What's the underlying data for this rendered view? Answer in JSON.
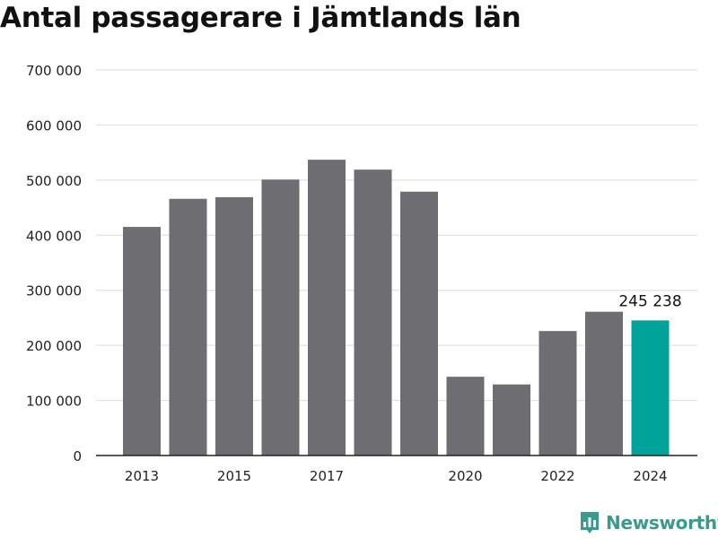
{
  "title": "Antal passagerare i Jämtlands län",
  "chart_data": {
    "type": "bar",
    "title": "Antal passagerare i Jämtlands län",
    "xlabel": "",
    "ylabel": "",
    "ylim": [
      0,
      700000
    ],
    "yticks": [
      0,
      100000,
      200000,
      300000,
      400000,
      500000,
      600000,
      700000
    ],
    "ytick_labels": [
      "0",
      "100 000",
      "200 000",
      "300 000",
      "400 000",
      "500 000",
      "600 000",
      "700 000"
    ],
    "categories": [
      "2013",
      "2014",
      "2015",
      "2016",
      "2017",
      "2018",
      "2019",
      "2020",
      "2021",
      "2022",
      "2023",
      "2024"
    ],
    "xtick_labels": [
      "2013",
      "",
      "2015",
      "",
      "2017",
      "",
      "",
      "2020",
      "",
      "2022",
      "",
      "2024"
    ],
    "values": [
      415000,
      466000,
      469000,
      501000,
      537000,
      519000,
      479000,
      143000,
      129000,
      226000,
      261000,
      245238
    ],
    "highlight_index": 11,
    "highlight_label": "245 238",
    "grid": true,
    "legend": "none"
  },
  "colors": {
    "bar": "#6e6d72",
    "highlight": "#00a39a",
    "grid": "#dcdcdc",
    "axis": "#222222",
    "text": "#222222"
  },
  "logo": {
    "text": "Newsworthy",
    "icon": "newsworthy-chart-icon"
  }
}
